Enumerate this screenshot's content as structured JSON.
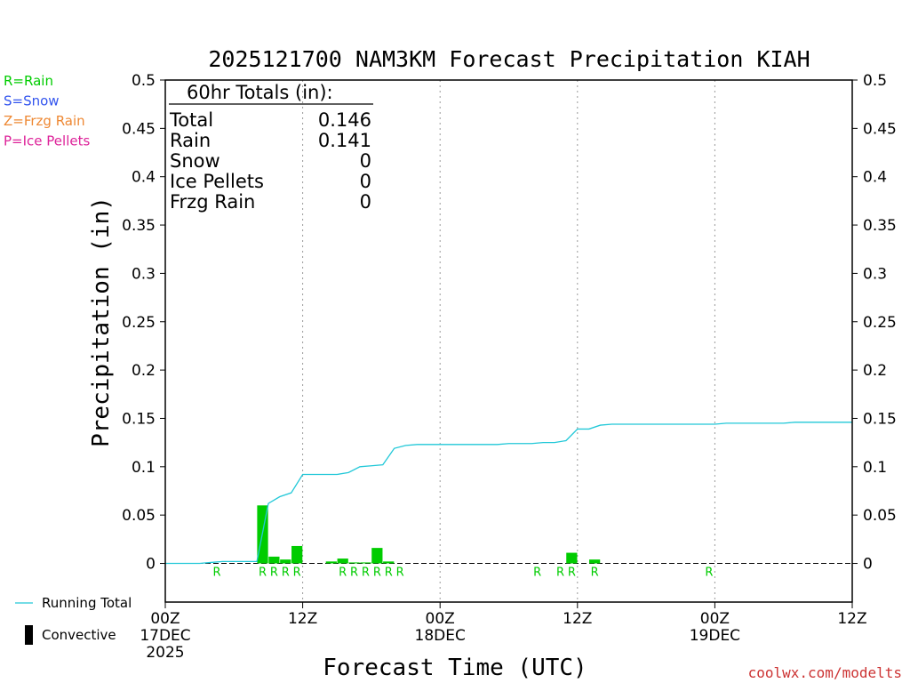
{
  "chart_data": {
    "type": "bar",
    "title": "2025121700 NAM3KM Forecast Precipitation KIAH",
    "xlabel": "Forecast Time (UTC)",
    "ylabel": "Precipitation (in)",
    "ylim": [
      -0.04,
      0.5
    ],
    "xlim_hours": [
      0,
      60
    ],
    "y_ticks": [
      "0.5",
      "0.45",
      "0.4",
      "0.35",
      "0.3",
      "0.25",
      "0.2",
      "0.15",
      "0.1",
      "0.05",
      "0"
    ],
    "y_tick_values": [
      0.5,
      0.45,
      0.4,
      0.35,
      0.3,
      0.25,
      0.2,
      0.15,
      0.1,
      0.05,
      0
    ],
    "x_ticks": [
      {
        "hour": 0,
        "label": "00Z",
        "date": "17DEC",
        "year": "2025"
      },
      {
        "hour": 12,
        "label": "12Z",
        "date": "",
        "year": ""
      },
      {
        "hour": 24,
        "label": "00Z",
        "date": "18DEC",
        "year": ""
      },
      {
        "hour": 36,
        "label": "12Z",
        "date": "",
        "year": ""
      },
      {
        "hour": 48,
        "label": "00Z",
        "date": "19DEC",
        "year": ""
      },
      {
        "hour": 60,
        "label": "12Z",
        "date": "",
        "year": ""
      }
    ],
    "grid_hours": [
      12,
      24,
      36,
      48
    ],
    "bars": [
      {
        "hour": 9,
        "value": 0.06
      },
      {
        "hour": 10,
        "value": 0.007
      },
      {
        "hour": 11,
        "value": 0.004
      },
      {
        "hour": 12,
        "value": 0.018
      },
      {
        "hour": 15,
        "value": 0.002
      },
      {
        "hour": 16,
        "value": 0.005
      },
      {
        "hour": 17,
        "value": 0.001
      },
      {
        "hour": 18,
        "value": 0.001
      },
      {
        "hour": 19,
        "value": 0.016
      },
      {
        "hour": 20,
        "value": 0.002
      },
      {
        "hour": 36,
        "value": 0.011
      },
      {
        "hour": 38,
        "value": 0.004
      }
    ],
    "running_total": {
      "hours": [
        0,
        1,
        2,
        3,
        4,
        5,
        6,
        7,
        8,
        9,
        10,
        11,
        12,
        13,
        14,
        15,
        16,
        17,
        18,
        19,
        20,
        21,
        22,
        23,
        24,
        25,
        26,
        27,
        28,
        29,
        30,
        31,
        32,
        33,
        34,
        35,
        36,
        37,
        38,
        39,
        40,
        41,
        42,
        43,
        44,
        45,
        46,
        47,
        48,
        49,
        50,
        51,
        52,
        53,
        54,
        55,
        56,
        57,
        58,
        59,
        60
      ],
      "values": [
        0,
        0,
        0,
        0,
        0.001,
        0.002,
        0.002,
        0.002,
        0.002,
        0.062,
        0.069,
        0.073,
        0.092,
        0.092,
        0.092,
        0.092,
        0.094,
        0.1,
        0.101,
        0.102,
        0.119,
        0.122,
        0.123,
        0.123,
        0.123,
        0.123,
        0.123,
        0.123,
        0.123,
        0.123,
        0.124,
        0.124,
        0.124,
        0.125,
        0.125,
        0.127,
        0.139,
        0.139,
        0.143,
        0.144,
        0.144,
        0.144,
        0.144,
        0.144,
        0.144,
        0.144,
        0.144,
        0.144,
        0.144,
        0.145,
        0.145,
        0.145,
        0.145,
        0.145,
        0.145,
        0.146,
        0.146,
        0.146,
        0.146,
        0.146,
        0.146
      ]
    },
    "precip_types": [
      {
        "hour": 5,
        "type": "R"
      },
      {
        "hour": 9,
        "type": "R"
      },
      {
        "hour": 10,
        "type": "R"
      },
      {
        "hour": 11,
        "type": "R"
      },
      {
        "hour": 12,
        "type": "R"
      },
      {
        "hour": 16,
        "type": "R"
      },
      {
        "hour": 17,
        "type": "R"
      },
      {
        "hour": 18,
        "type": "R"
      },
      {
        "hour": 19,
        "type": "R"
      },
      {
        "hour": 20,
        "type": "R"
      },
      {
        "hour": 21,
        "type": "R"
      },
      {
        "hour": 33,
        "type": "R"
      },
      {
        "hour": 35,
        "type": "R"
      },
      {
        "hour": 36,
        "type": "R"
      },
      {
        "hour": 38,
        "type": "R"
      },
      {
        "hour": 48,
        "type": "R"
      }
    ],
    "totals_box": {
      "heading": "60hr Totals (in):",
      "rows": [
        {
          "label": "Total",
          "value": "0.146"
        },
        {
          "label": "Rain",
          "value": "0.141"
        },
        {
          "label": "Snow",
          "value": "0"
        },
        {
          "label": "Ice Pellets",
          "value": "0"
        },
        {
          "label": "Frzg Rain",
          "value": "0"
        }
      ]
    },
    "type_legend": [
      {
        "text": "R=Rain",
        "color": "#00cc00"
      },
      {
        "text": "S=Snow",
        "color": "#3355ee"
      },
      {
        "text": "Z=Frzg Rain",
        "color": "#ee8833"
      },
      {
        "text": "P=Ice Pellets",
        "color": "#dd2299"
      }
    ],
    "series_legend": [
      {
        "text": "Running Total",
        "color": "#22c8d8",
        "kind": "line"
      },
      {
        "text": "Convective",
        "color": "#000000",
        "kind": "bar"
      }
    ],
    "bar_color": "#00cc00",
    "line_color": "#22c8d8",
    "credit": "coolwx.com/modelts"
  }
}
